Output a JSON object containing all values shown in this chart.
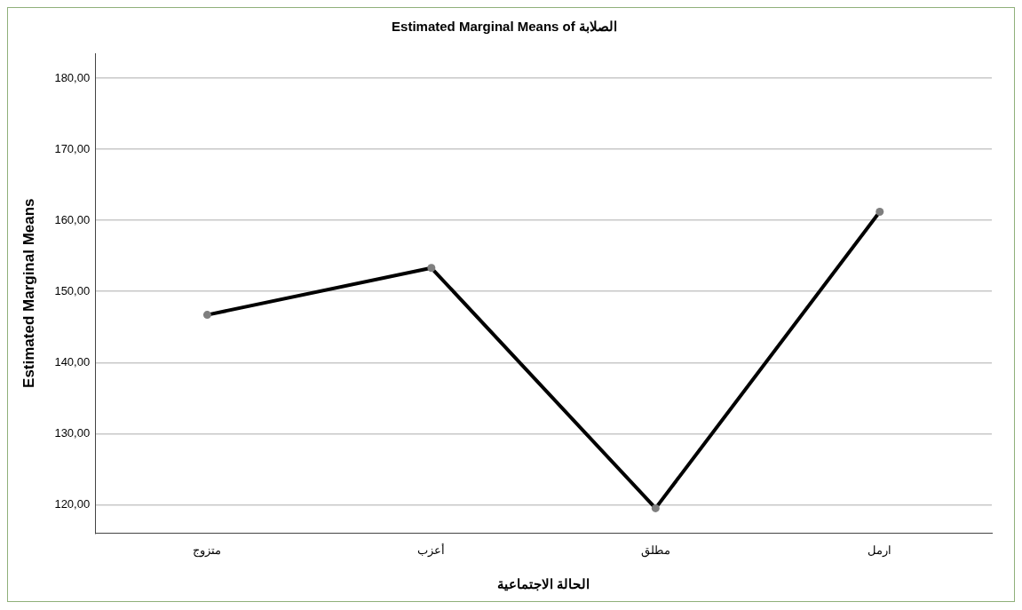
{
  "chart_data": {
    "type": "line",
    "title": "Estimated Marginal Means of الصلابة",
    "xlabel": "الحالة الاجتماعية",
    "ylabel": "Estimated Marginal Means",
    "categories": [
      "متزوج",
      "أعزب",
      "مطلق",
      "ارمل"
    ],
    "series": [
      {
        "color": "#000000",
        "values": [
          146.7,
          153.3,
          119.5,
          161.2
        ]
      }
    ],
    "ylim": [
      116,
      183.5
    ],
    "yticks": [
      {
        "value": 120,
        "label": "120,00"
      },
      {
        "value": 130,
        "label": "130,00"
      },
      {
        "value": 140,
        "label": "140,00"
      },
      {
        "value": 150,
        "label": "150,00"
      },
      {
        "value": 160,
        "label": "160,00"
      },
      {
        "value": 170,
        "label": "170,00"
      },
      {
        "value": 180,
        "label": "180,00"
      }
    ],
    "grid": "y",
    "marker": "circle",
    "line_style": "solid",
    "legend": false
  }
}
